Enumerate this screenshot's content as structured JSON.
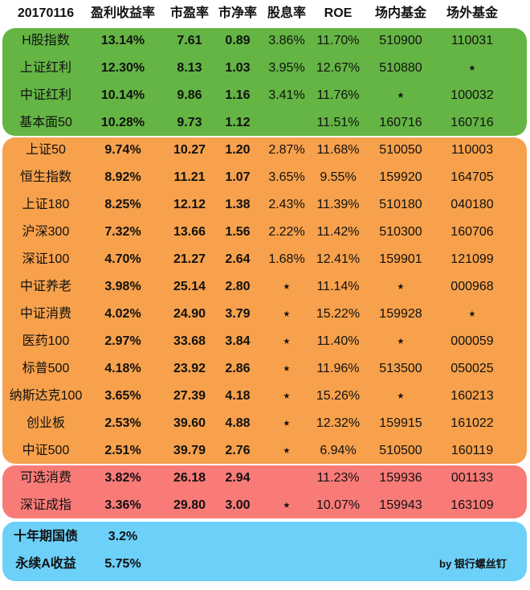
{
  "header": [
    "20170116",
    "盈利收益率",
    "市盈率",
    "市净率",
    "股息率",
    "ROE",
    "场内基金",
    "场外基金"
  ],
  "groups": [
    {
      "color": "#64b544",
      "rows": [
        [
          "H股指数",
          "13.14%",
          "7.61",
          "0.89",
          "3.86%",
          "11.70%",
          "510900",
          "110031"
        ],
        [
          "上证红利",
          "12.30%",
          "8.13",
          "1.03",
          "3.95%",
          "12.67%",
          "510880",
          "⭑"
        ],
        [
          "中证红利",
          "10.14%",
          "9.86",
          "1.16",
          "3.41%",
          "11.76%",
          "⭑",
          "100032"
        ],
        [
          "基本面50",
          "10.28%",
          "9.73",
          "1.12",
          "",
          "11.51%",
          "160716",
          "160716"
        ]
      ]
    },
    {
      "color": "#f7a14c",
      "rows": [
        [
          "上证50",
          "9.74%",
          "10.27",
          "1.20",
          "2.87%",
          "11.68%",
          "510050",
          "110003"
        ],
        [
          "恒生指数",
          "8.92%",
          "11.21",
          "1.07",
          "3.65%",
          "9.55%",
          "159920",
          "164705"
        ],
        [
          "上证180",
          "8.25%",
          "12.12",
          "1.38",
          "2.43%",
          "11.39%",
          "510180",
          "040180"
        ],
        [
          "沪深300",
          "7.32%",
          "13.66",
          "1.56",
          "2.22%",
          "11.42%",
          "510300",
          "160706"
        ],
        [
          "深证100",
          "4.70%",
          "21.27",
          "2.64",
          "1.68%",
          "12.41%",
          "159901",
          "121099"
        ],
        [
          "中证养老",
          "3.98%",
          "25.14",
          "2.80",
          "⭑",
          "11.14%",
          "⭑",
          "000968"
        ],
        [
          "中证消费",
          "4.02%",
          "24.90",
          "3.79",
          "⭑",
          "15.22%",
          "159928",
          "⭑"
        ],
        [
          "医药100",
          "2.97%",
          "33.68",
          "3.84",
          "⭑",
          "11.40%",
          "⭑",
          "000059"
        ],
        [
          "标普500",
          "4.18%",
          "23.92",
          "2.86",
          "⭑",
          "11.96%",
          "513500",
          "050025"
        ],
        [
          "纳斯达克100",
          "3.65%",
          "27.39",
          "4.18",
          "⭑",
          "15.26%",
          "⭑",
          "160213"
        ],
        [
          "创业板",
          "2.53%",
          "39.60",
          "4.88",
          "⭑",
          "12.32%",
          "159915",
          "161022"
        ],
        [
          "中证500",
          "2.51%",
          "39.79",
          "2.76",
          "⭑",
          "6.94%",
          "510500",
          "160119"
        ]
      ]
    },
    {
      "color": "#f97b78",
      "rows": [
        [
          "可选消费",
          "3.82%",
          "26.18",
          "2.94",
          "",
          "11.23%",
          "159936",
          "001133"
        ],
        [
          "深证成指",
          "3.36%",
          "29.80",
          "3.00",
          "⭑",
          "10.07%",
          "159943",
          "163109"
        ]
      ]
    }
  ],
  "bonds": [
    {
      "name": "十年期国债",
      "value": "3.2%"
    },
    {
      "name": "永续A收益",
      "value": "5.75%"
    }
  ],
  "credit": "by 银行螺丝钉"
}
